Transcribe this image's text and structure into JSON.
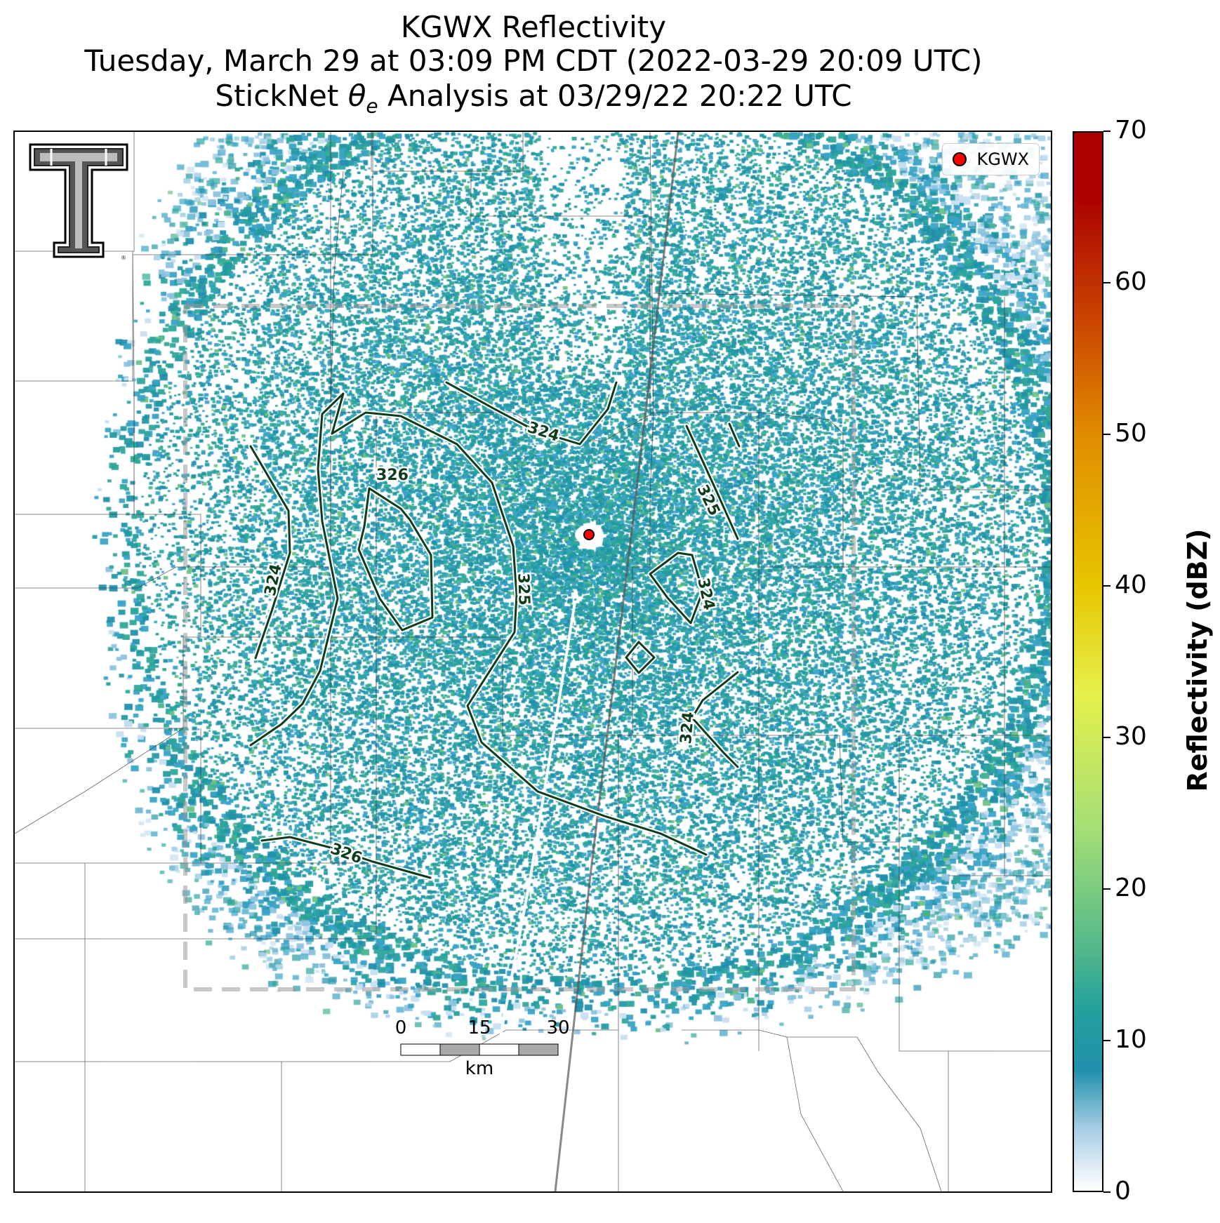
{
  "title": {
    "line1": "KGWX Reflectivity",
    "line2": "Tuesday, March 29 at 03:09 PM CDT (2022-03-29 20:09 UTC)",
    "line3_pre": "StickNet ",
    "line3_symbol": "θ",
    "line3_sub": "e",
    "line3_post": " Analysis at 03/29/22 20:22 UTC"
  },
  "legend": {
    "radar_label": "KGWX",
    "marker_color": "#ff0000"
  },
  "colorbar": {
    "label": "Reflectivity (dBZ)",
    "ticks": [
      "0",
      "10",
      "20",
      "30",
      "40",
      "50",
      "60",
      "70"
    ],
    "range": [
      0,
      70
    ],
    "colors": [
      "#ffffff",
      "#a9cfe6",
      "#2190ac",
      "#23a09c",
      "#52b98a",
      "#a5df75",
      "#e6f04a",
      "#e7c600",
      "#e08d00",
      "#cc4a00",
      "#aa0000"
    ]
  },
  "contours": {
    "color": "#0d3d1c",
    "labels": [
      "324",
      "326",
      "324",
      "325",
      "325",
      "324",
      "324",
      "326"
    ]
  },
  "scale_bar": {
    "ticks": [
      "0",
      "15",
      "30"
    ],
    "unit": "km"
  },
  "logo_icon": "texas-tech-double-t-logo"
}
